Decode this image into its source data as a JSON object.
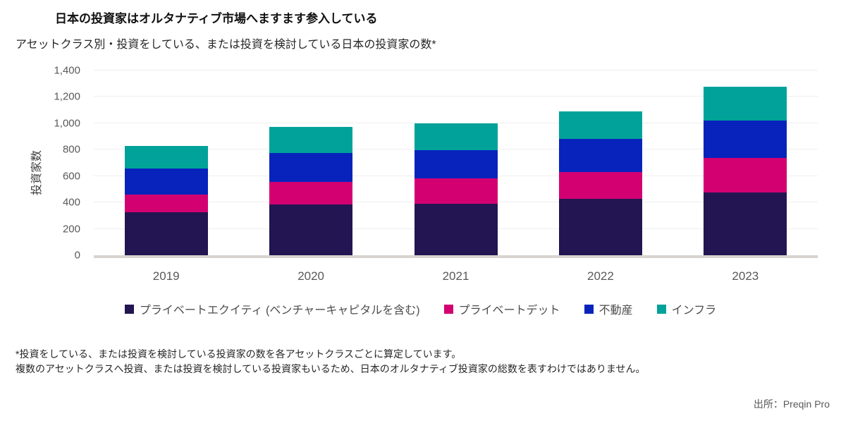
{
  "header": {
    "title": "日本の投資家はオルタナティブ市場へますます参入している",
    "subtitle": "アセットクラス別・投資をしている、または投資を検討している日本の投資家の数*"
  },
  "chart_data": {
    "type": "bar",
    "stacked": true,
    "title": "日本の投資家はオルタナティブ市場へますます参入している",
    "subtitle": "アセットクラス別・投資をしている、または投資を検討している日本の投資家の数*",
    "categories": [
      "2019",
      "2020",
      "2021",
      "2022",
      "2023"
    ],
    "series": [
      {
        "name": "プライベートエクイティ (ベンチャーキャピタルを含む)",
        "color": "#231552",
        "values": [
          325,
          385,
          390,
          430,
          475
        ]
      },
      {
        "name": "プライベートデット",
        "color": "#d30072",
        "values": [
          135,
          170,
          190,
          200,
          260
        ]
      },
      {
        "name": "不動産",
        "color": "#0823bc",
        "values": [
          200,
          220,
          215,
          250,
          285
        ]
      },
      {
        "name": "インフラ",
        "color": "#00a29a",
        "values": [
          170,
          200,
          205,
          210,
          255
        ]
      }
    ],
    "totals": [
      830,
      975,
      1000,
      1090,
      1275
    ],
    "xlabel": "",
    "ylabel": "投資家数",
    "ylim": [
      0,
      1400
    ],
    "ytick_interval": 200,
    "yticks": [
      "0",
      "200",
      "400",
      "600",
      "800",
      "1,000",
      "1,200",
      "1,400"
    ],
    "grid": true,
    "legend_position": "bottom",
    "colors": {
      "grid": "#efefef",
      "baseline": "#d8d4cf",
      "axis_text": "#595959"
    }
  },
  "footnotes": {
    "line1": "*投資をしている、または投資を検討している投資家の数を各アセットクラスごとに算定しています。",
    "line2": "複数のアセットクラスへ投資、または投資を検討している投資家もいるため、日本のオルタナティブ投資家の総数を表すわけではありません。"
  },
  "source": {
    "label": "出所：Preqin Pro"
  }
}
